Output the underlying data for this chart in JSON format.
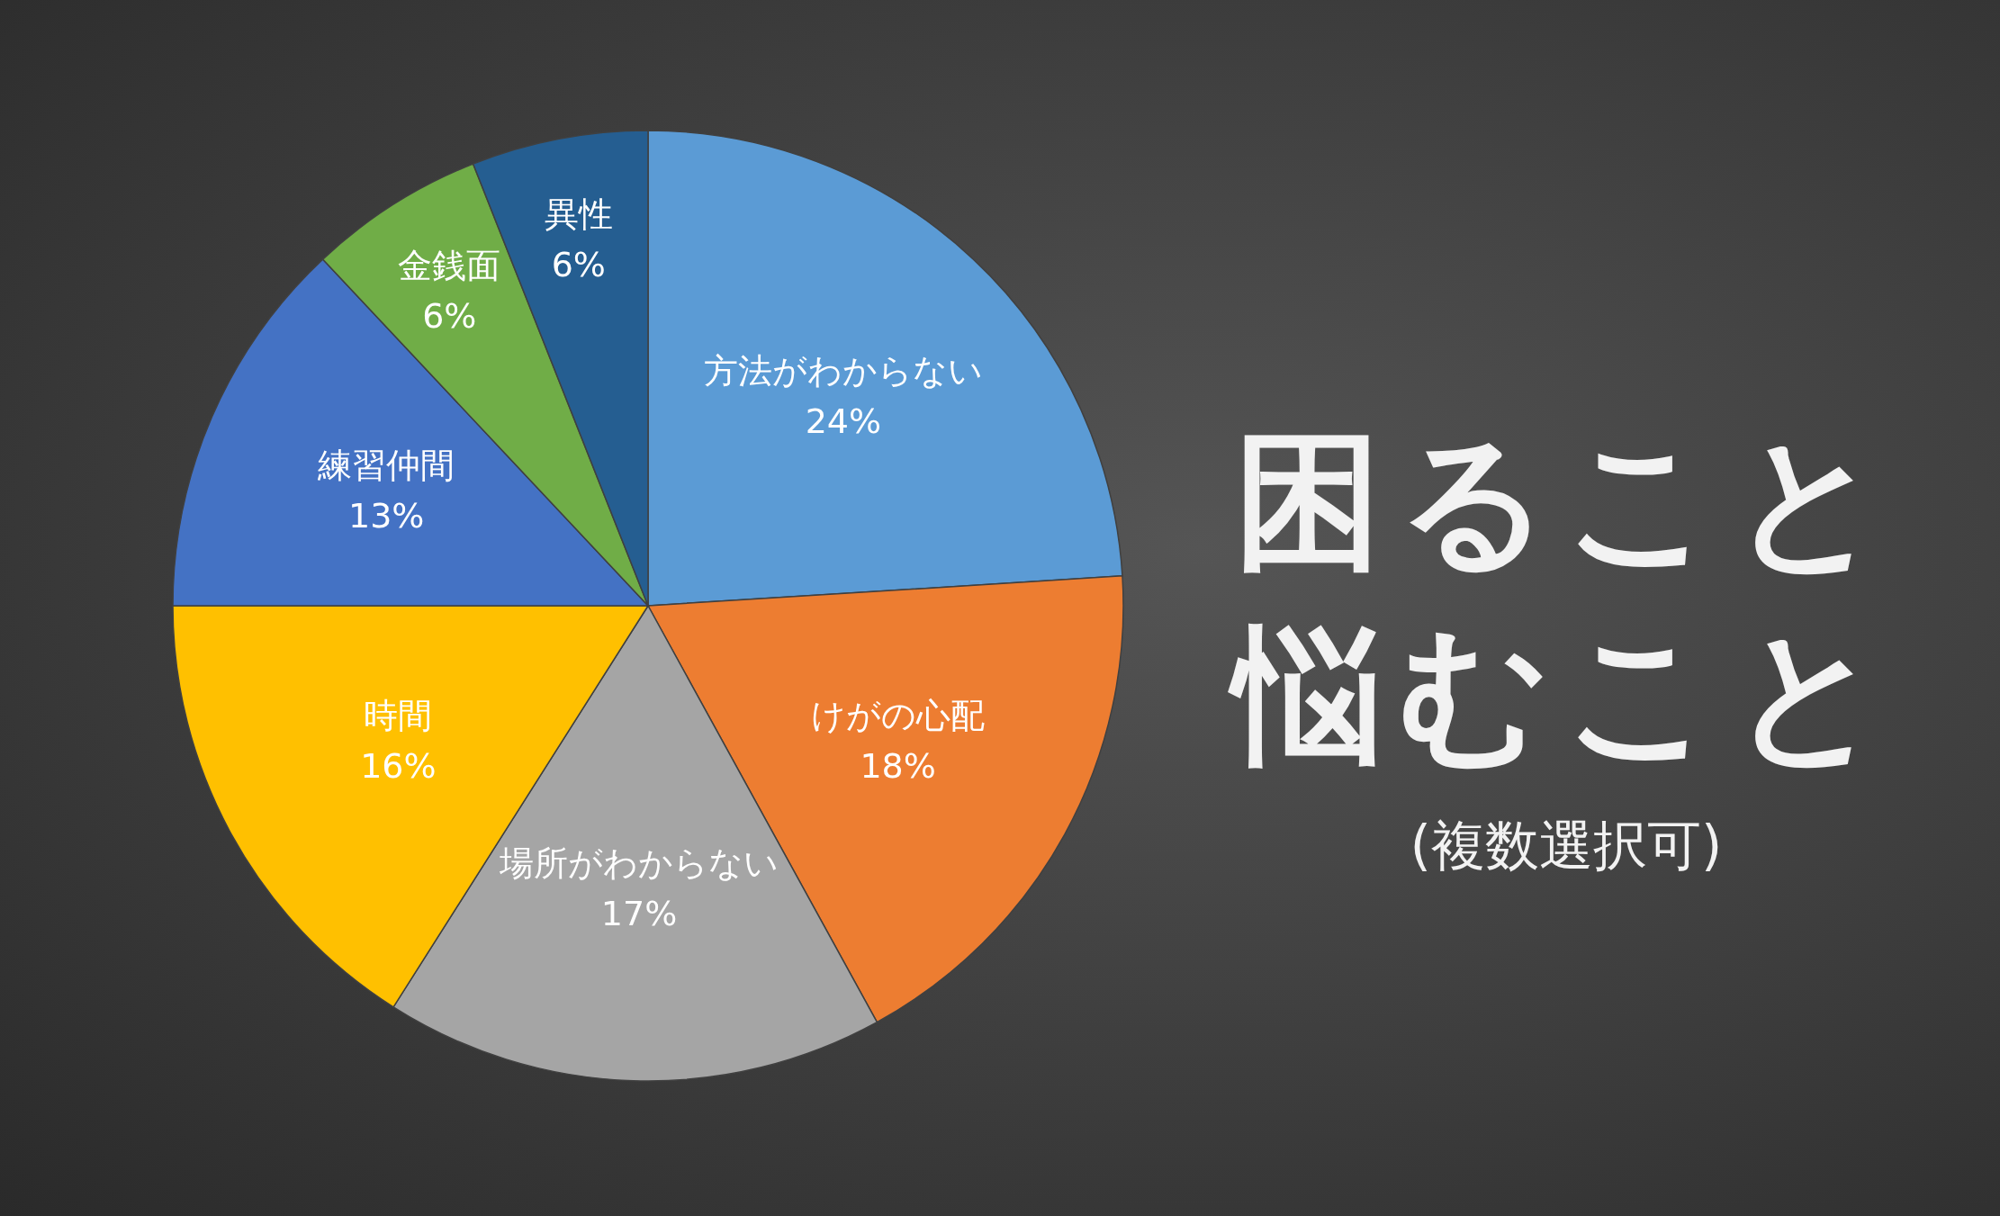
{
  "chart_data": {
    "type": "pie",
    "title": "困ること悩むこと",
    "subtitle": "(複数選択可)",
    "categories": [
      "方法がわからない",
      "けがの心配",
      "場所がわからない",
      "時間",
      "練習仲間",
      "金銭面",
      "異性"
    ],
    "values": [
      24,
      18,
      17,
      16,
      13,
      6,
      6
    ],
    "value_labels": [
      "24%",
      "18%",
      "17%",
      "16%",
      "13%",
      "6%",
      "6%"
    ],
    "colors": [
      "#5b9bd5",
      "#ed7d31",
      "#a5a5a5",
      "#ffc000",
      "#4472c4",
      "#70ad47",
      "#255e91"
    ]
  }
}
